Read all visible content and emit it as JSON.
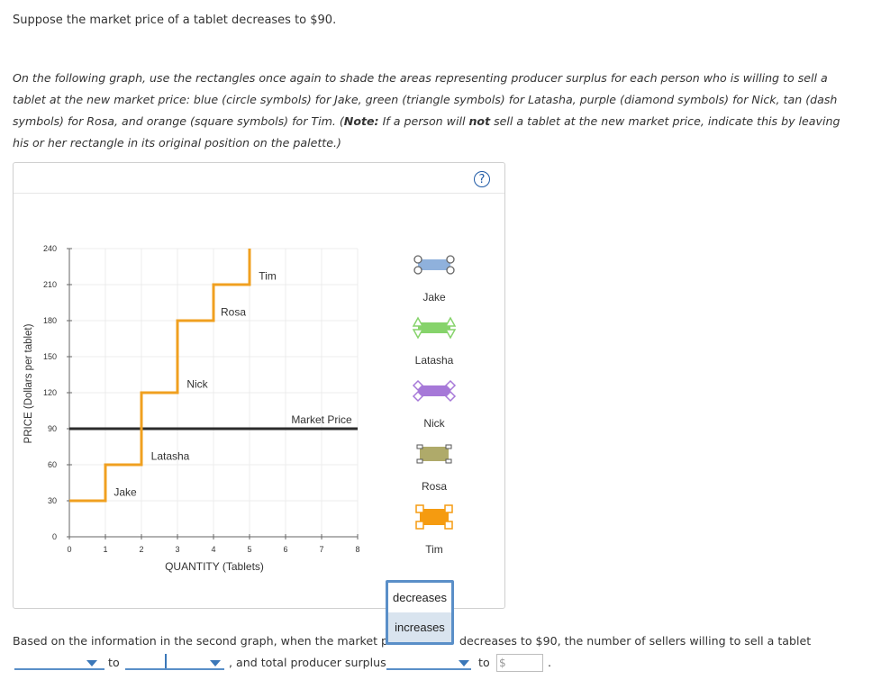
{
  "intro": "Suppose the market price of a tablet decreases to $90.",
  "instructions": {
    "part1": "On the following graph, use the rectangles once again to shade the areas representing producer surplus for each person who is willing to sell a tablet at the new market price: blue (circle symbols) for Jake, green (triangle symbols) for Latasha, purple (diamond symbols) for Nick, tan (dash symbols) for Rosa, and orange (square symbols) for Tim. (",
    "note_label": "Note:",
    "part2": " If a person will ",
    "not_word": "not",
    "part3": " sell a tablet at the new market price, indicate this by leaving his or her rectangle in its original position on the palette.)"
  },
  "help_icon": "?",
  "chart_data": {
    "type": "line",
    "xlabel": "QUANTITY (Tablets)",
    "ylabel": "PRICE (Dollars per tablet)",
    "xlim": [
      0,
      8
    ],
    "ylim": [
      0,
      240
    ],
    "x_ticks": [
      "0",
      "1",
      "2",
      "3",
      "4",
      "5",
      "6",
      "7",
      "8"
    ],
    "y_ticks": [
      "0",
      "30",
      "60",
      "90",
      "120",
      "150",
      "180",
      "210",
      "240"
    ],
    "grid": true,
    "supply_steps": [
      {
        "seller": "Jake",
        "price": 30,
        "x_from": 0,
        "x_to": 1
      },
      {
        "seller": "Latasha",
        "price": 60,
        "x_from": 1,
        "x_to": 2
      },
      {
        "seller": "Nick",
        "price": 120,
        "x_from": 2,
        "x_to": 3
      },
      {
        "seller": "Rosa",
        "price": 180,
        "x_from": 3,
        "x_to": 4
      },
      {
        "seller": "Tim",
        "price": 210,
        "x_from": 4,
        "x_to": 5
      }
    ],
    "supply_end_price": 240,
    "step_labels": [
      {
        "text": "Jake",
        "x": 1.55,
        "y": 37
      },
      {
        "text": "Latasha",
        "x": 2.8,
        "y": 67
      },
      {
        "text": "Nick",
        "x": 3.55,
        "y": 127
      },
      {
        "text": "Rosa",
        "x": 4.55,
        "y": 187
      },
      {
        "text": "Tim",
        "x": 5.5,
        "y": 217
      }
    ],
    "market_price": 90,
    "market_price_label": "Market Price",
    "supply_color": "#f0a020",
    "market_price_color": "#2b2b2b"
  },
  "palette": [
    {
      "name": "Jake",
      "symbol": "circle",
      "color": "#8fb1dc"
    },
    {
      "name": "Latasha",
      "symbol": "triangle",
      "color": "#86d36b"
    },
    {
      "name": "Nick",
      "symbol": "diamond",
      "color": "#a678d8"
    },
    {
      "name": "Rosa",
      "symbol": "dash",
      "color": "#afaa6a"
    },
    {
      "name": "Tim",
      "symbol": "square",
      "color": "#f59b10"
    }
  ],
  "dropdown_popup": {
    "options": [
      "decreases",
      "increases"
    ],
    "highlighted": "increases"
  },
  "bottom": {
    "sentence_start": "Based on the information in the second graph, when the market pric",
    "sentence_cont": "decreases to $90, the number of sellers willing to sell a tablet",
    "to1": "to",
    "mid": ", and total producer surplus",
    "to2": "to",
    "dollar_placeholder": "$",
    "period": "."
  }
}
